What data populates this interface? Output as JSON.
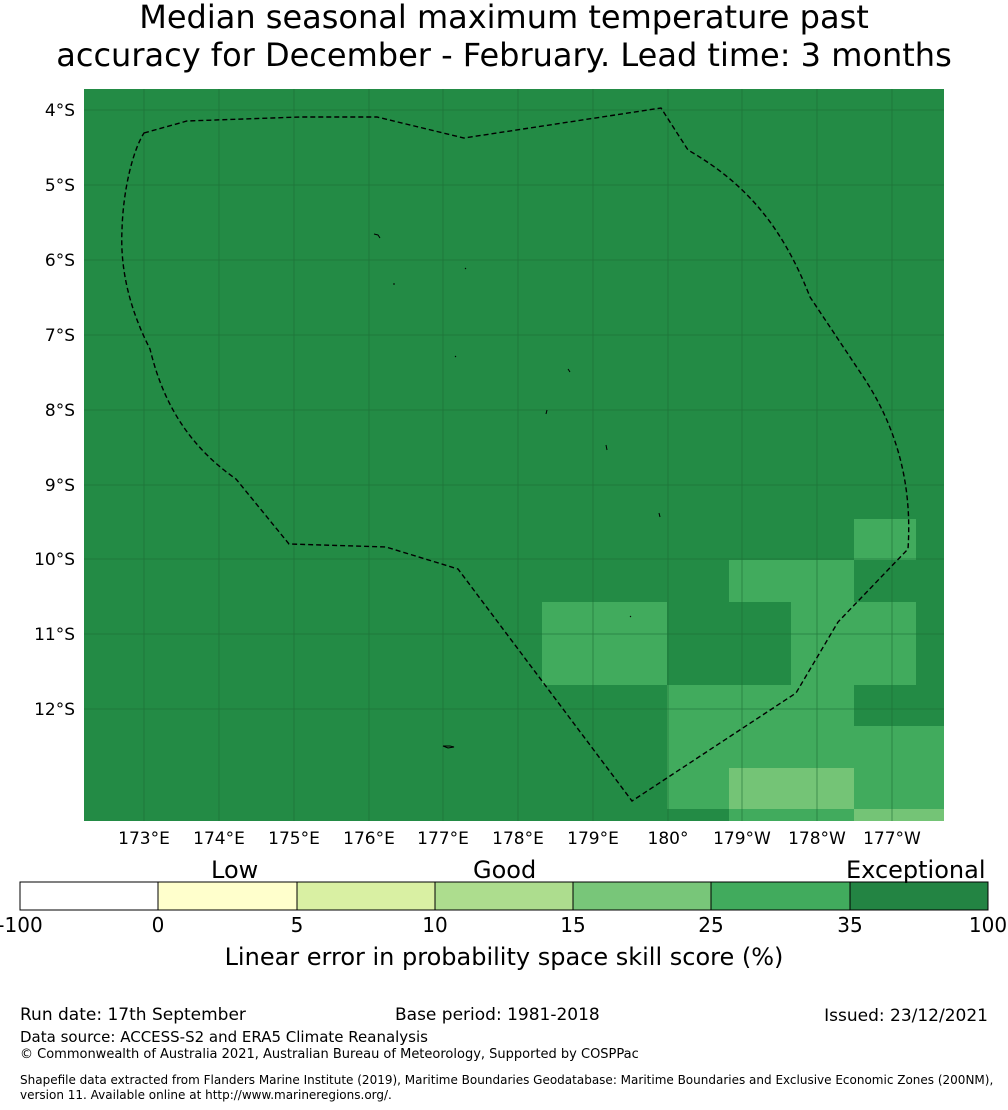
{
  "title": {
    "line1": "Median seasonal maximum temperature past",
    "line2": "accuracy for December - February. Lead time: 3 months"
  },
  "map": {
    "lat_labels": [
      "4°S",
      "5°S",
      "6°S",
      "7°S",
      "8°S",
      "9°S",
      "10°S",
      "11°S",
      "12°S"
    ],
    "lon_labels": [
      "173°E",
      "174°E",
      "175°E",
      "176°E",
      "177°E",
      "178°E",
      "179°E",
      "180°",
      "179°W",
      "178°W",
      "177°W"
    ],
    "background_color": "#238b45",
    "colors": {
      "very_good": "#41ab5d",
      "good_light": "#74c476",
      "exceptional": "#238b45"
    },
    "boundary_style": "dashed black line (EEZ)",
    "grid": true
  },
  "colorbar": {
    "categories": [
      "Low",
      "Good",
      "Exceptional"
    ],
    "ticks": [
      "-100",
      "0",
      "5",
      "10",
      "15",
      "25",
      "35",
      "100"
    ],
    "colors": [
      "#ffffff",
      "#ffffcc",
      "#d9f0a3",
      "#addd8e",
      "#78c679",
      "#41ab5d",
      "#238443"
    ],
    "label": "Linear error in probability space skill score (%)"
  },
  "footer": {
    "run_date": "Run date: 17th September",
    "base_period": "Base period: 1981-2018",
    "issued": "Issued: 23/12/2021",
    "data_source": "Data source: ACCESS-S2 and ERA5 Climate Reanalysis",
    "copyright": "© Commonwealth of Australia 2021, Australian Bureau of Meteorology, Supported by COSPPac",
    "shapefile": "Shapefile data extracted from Flanders Marine Institute (2019), Maritime Boundaries Geodatabase: Maritime Boundaries and Exclusive Economic Zones (200NM), version 11. Available online at http://www.marineregions.org/."
  }
}
